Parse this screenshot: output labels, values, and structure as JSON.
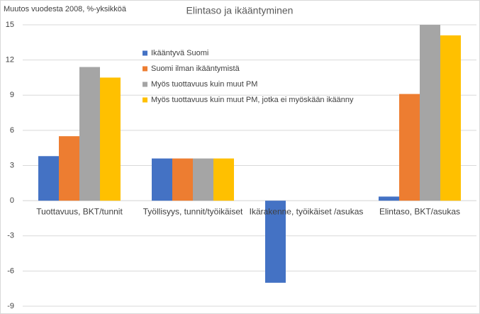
{
  "chart_data": {
    "type": "bar",
    "title": "Elintaso ja ikääntyminen",
    "subtitle": "Muutos vuodesta 2008, %-yksikköä",
    "categories": [
      "Tuottavuus, BKT/tunnit",
      "Työllisyys, tunnit/työikäiset",
      "Ikärakenne, työikäiset /asukas",
      "Elintaso, BKT/asukas"
    ],
    "series": [
      {
        "name": "Ikääntyvä Suomi",
        "color": "#4472c4",
        "values": [
          3.8,
          3.6,
          -7.0,
          0.35
        ]
      },
      {
        "name": "Suomi ilman ikääntymistä",
        "color": "#ed7d31",
        "values": [
          5.5,
          3.6,
          0,
          9.1
        ]
      },
      {
        "name": "Myös tuottavuus kuin muut PM",
        "color": "#a5a5a5",
        "values": [
          11.4,
          3.6,
          0,
          15.0
        ]
      },
      {
        "name": "Myös tuottavuus kuin muut PM, jotka ei myöskään ikäänny",
        "color": "#ffc000",
        "values": [
          10.5,
          3.6,
          0,
          14.1
        ]
      }
    ],
    "ylim": [
      -9,
      15
    ],
    "yticks": [
      -9,
      -6,
      -3,
      0,
      3,
      6,
      9,
      12,
      15
    ],
    "grid": true
  }
}
